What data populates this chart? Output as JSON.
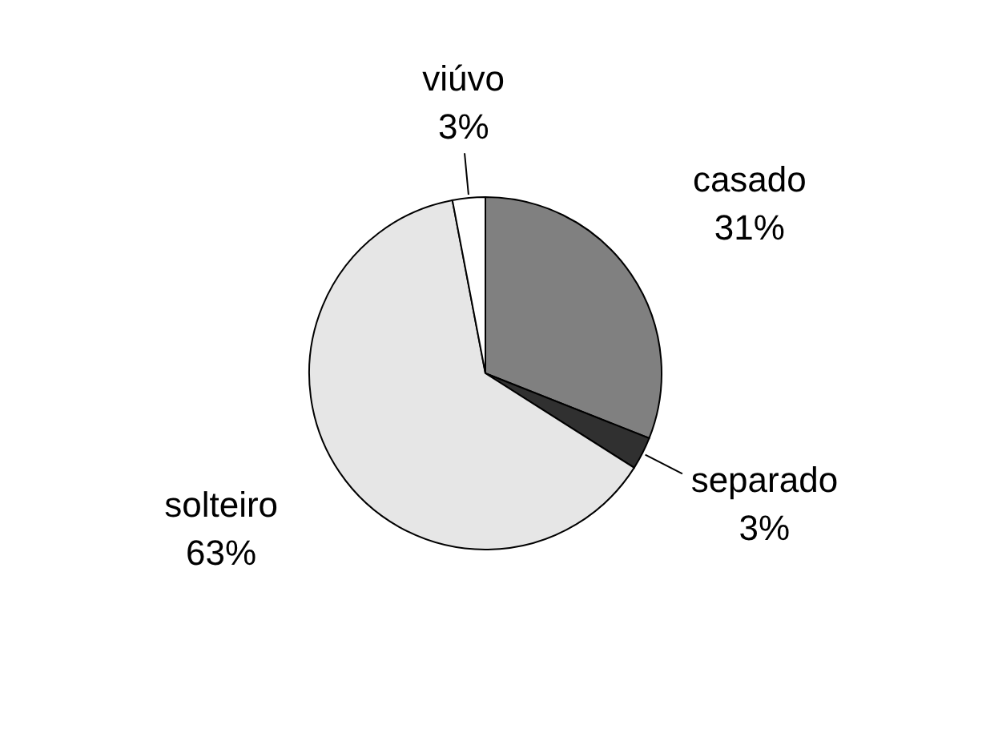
{
  "chart_data": {
    "type": "pie",
    "categories": [
      "casado",
      "separado",
      "solteiro",
      "viúvo"
    ],
    "values": [
      31,
      3,
      63,
      3
    ],
    "colors": [
      "#808080",
      "#303030",
      "#e6e6e6",
      "#ffffff"
    ],
    "value_labels": [
      "31%",
      "3%",
      "63%",
      "3%"
    ]
  }
}
